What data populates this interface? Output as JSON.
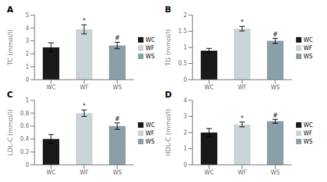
{
  "chart_data": [
    {
      "type": "bar",
      "title": "A",
      "y_label": "TC (mmol/l)",
      "categories": [
        "WC",
        "WF",
        "WS"
      ],
      "values": [
        2.5,
        3.9,
        2.65
      ],
      "errors": [
        0.35,
        0.35,
        0.25
      ],
      "colors": [
        "#1a1a1a",
        "#c8d4d8",
        "#8a9fa8"
      ],
      "ylim": [
        0,
        5
      ],
      "yticks": [
        0,
        1,
        2,
        3,
        4,
        5
      ],
      "annotations": [
        {
          "x": "WF",
          "text": "*"
        },
        {
          "x": "WS",
          "text": "#"
        }
      ],
      "legend": "right"
    },
    {
      "type": "bar",
      "title": "B",
      "y_label": "TG (mmol/l)",
      "categories": [
        "WC",
        "WF",
        "WS"
      ],
      "values": [
        0.9,
        1.58,
        1.2
      ],
      "errors": [
        0.07,
        0.07,
        0.08
      ],
      "colors": [
        "#1a1a1a",
        "#c8d4d8",
        "#8a9fa8"
      ],
      "ylim": [
        0,
        2
      ],
      "yticks": [
        0,
        0.5,
        1,
        1.5,
        2
      ],
      "annotations": [
        {
          "x": "WF",
          "text": "*"
        },
        {
          "x": "WS",
          "text": "#"
        }
      ],
      "legend": "right"
    },
    {
      "type": "bar",
      "title": "C",
      "y_label": "LDL-C (mmol/l)",
      "categories": [
        "WC",
        "WF",
        "WS"
      ],
      "values": [
        0.4,
        0.8,
        0.6
      ],
      "errors": [
        0.07,
        0.05,
        0.05
      ],
      "colors": [
        "#1a1a1a",
        "#c8d4d8",
        "#8a9fa8"
      ],
      "ylim": [
        0,
        1
      ],
      "yticks": [
        0,
        0.2,
        0.4,
        0.6,
        0.8,
        1
      ],
      "annotations": [
        {
          "x": "WF",
          "text": "*"
        },
        {
          "x": "WS",
          "text": "#"
        }
      ],
      "legend": "right"
    },
    {
      "type": "bar",
      "title": "D",
      "y_label": "HDL-C (mmol/l)",
      "categories": [
        "WC",
        "WF",
        "WS"
      ],
      "values": [
        2.0,
        2.5,
        2.7
      ],
      "errors": [
        0.25,
        0.15,
        0.12
      ],
      "colors": [
        "#1a1a1a",
        "#c8d4d8",
        "#8a9fa8"
      ],
      "ylim": [
        0,
        4
      ],
      "yticks": [
        0,
        1,
        2,
        3,
        4
      ],
      "annotations": [
        {
          "x": "WF",
          "text": "*"
        },
        {
          "x": "WS",
          "text": "#"
        }
      ],
      "legend": "right"
    }
  ]
}
